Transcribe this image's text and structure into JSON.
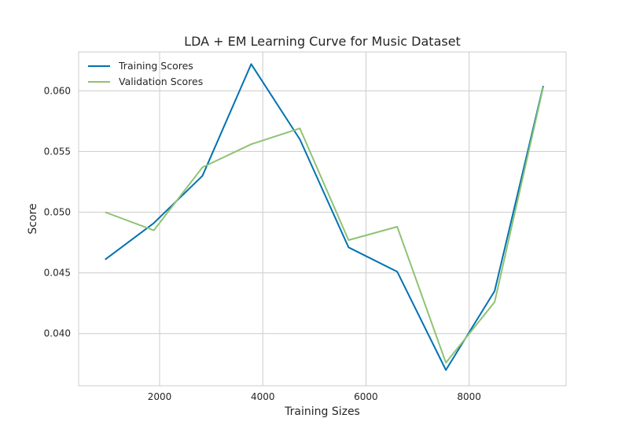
{
  "chart_data": {
    "type": "line",
    "title": "LDA + EM Learning Curve for Music Dataset",
    "xlabel": "Training Sizes",
    "ylabel": "Score",
    "xlim": [
      430,
      9880
    ],
    "ylim": [
      0.0357,
      0.0632
    ],
    "xticks": [
      2000,
      4000,
      6000,
      8000
    ],
    "xtick_labels": [
      "2000",
      "4000",
      "6000",
      "8000"
    ],
    "yticks": [
      0.04,
      0.045,
      0.05,
      0.055,
      0.06
    ],
    "ytick_labels": [
      "0.040",
      "0.045",
      "0.050",
      "0.055",
      "0.060"
    ],
    "grid": true,
    "legend_position": "top-left",
    "x": [
      944,
      1887,
      2830,
      3775,
      4719,
      5662,
      6606,
      7550,
      8494,
      9437
    ],
    "series": [
      {
        "name": "Training Scores",
        "color": "#0072b2",
        "values": [
          0.0461,
          0.0491,
          0.053,
          0.0622,
          0.056,
          0.0471,
          0.0451,
          0.037,
          0.0435,
          0.0604
        ]
      },
      {
        "name": "Validation Scores",
        "color": "#8fc273",
        "values": [
          0.05,
          0.0485,
          0.0537,
          0.0556,
          0.0569,
          0.0477,
          0.0488,
          0.0376,
          0.0426,
          0.0603
        ]
      }
    ]
  }
}
